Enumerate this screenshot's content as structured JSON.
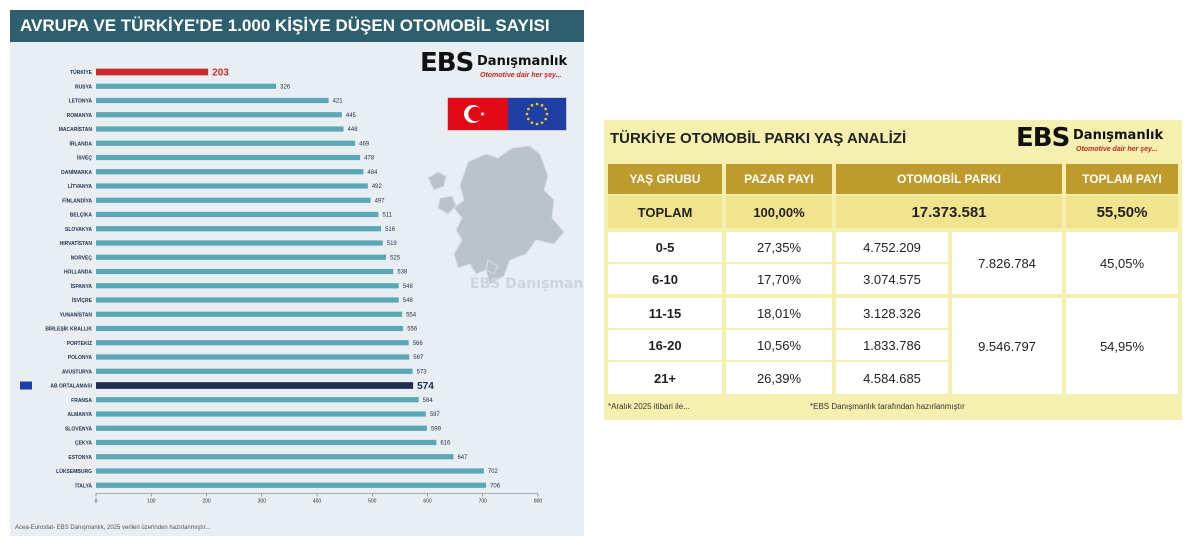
{
  "left": {
    "title": "AVRUPA VE TÜRKİYE'DE 1.000 KİŞİYE DÜŞEN OTOMOBİL SAYISI",
    "logo": {
      "brand": "EBS",
      "name": "Danışmanlık",
      "tagline": "Otomotive dair her şey..."
    },
    "watermark": "EBS Danışmanlık",
    "source": "Acea-Eurostat- EBS Danışmanlık, 2025 verileri üzerinden hazırlanmıştır..."
  },
  "right": {
    "title": "TÜRKİYE OTOMOBİL PARKI YAŞ ANALİZİ",
    "logo": {
      "brand": "EBS",
      "name": "Danışmanlık",
      "tagline": "Otomotive dair her şey..."
    },
    "headers": [
      "YAŞ GRUBU",
      "PAZAR PAYI",
      "OTOMOBİL PARKI",
      "TOPLAM PAYI"
    ],
    "total": {
      "group": "TOPLAM",
      "share": "100,00%",
      "park": "17.373.581",
      "total_share": "55,50%"
    },
    "rows": [
      {
        "group": "0-5",
        "share": "27,35%",
        "park": "4.752.209"
      },
      {
        "group": "6-10",
        "share": "17,70%",
        "park": "3.074.575"
      },
      {
        "group": "11-15",
        "share": "18,01%",
        "park": "3.128.326"
      },
      {
        "group": "16-20",
        "share": "10,56%",
        "park": "1.833.786"
      },
      {
        "group": "21+",
        "share": "26,39%",
        "park": "4.584.685"
      }
    ],
    "groups": [
      {
        "subtotal": "7.826.784",
        "total_share": "45,05%"
      },
      {
        "subtotal": "9.546.797",
        "total_share": "54,95%"
      }
    ],
    "note_left": "*Aralık 2025 itibari ile...",
    "note_right": "*EBS Danışmanlık tarafından hazırlanmıştır"
  },
  "colors": {
    "bar": "#5aa7b6",
    "turkey": "#cc2b2b",
    "eu_avg": "#1e2f4f",
    "header": "#bf9a2c",
    "title_bg": "#2e5f6e"
  },
  "chart_data": {
    "type": "bar",
    "orientation": "horizontal",
    "title": "AVRUPA VE TÜRKİYE'DE 1.000 KİŞİYE DÜŞEN OTOMOBİL SAYISI",
    "categories": [
      "TÜRKİYE",
      "RUSYA",
      "LETONYA",
      "ROMANYA",
      "MACARİSTAN",
      "İRLANDA",
      "İSVEÇ",
      "DANİMARKA",
      "LİTVANYA",
      "FİNLANDİYA",
      "BELÇİKA",
      "SLOVAKYA",
      "HIRVATİSTAN",
      "NORVEÇ",
      "HOLLANDA",
      "İSPANYA",
      "İSVİÇRE",
      "YUNANİSTAN",
      "BİRLEŞİK KRALLIK",
      "PORTEKİZ",
      "POLONYA",
      "AVUSTURYA",
      "AB ORTALAMASI",
      "FRANSA",
      "ALMANYA",
      "SLOVENYA",
      "ÇEKYA",
      "ESTONYA",
      "LÜKSEMBURG",
      "İTALYA"
    ],
    "values": [
      203,
      326,
      421,
      445,
      448,
      469,
      478,
      484,
      492,
      497,
      511,
      516,
      519,
      525,
      538,
      548,
      548,
      554,
      556,
      566,
      567,
      573,
      574,
      584,
      597,
      599,
      616,
      647,
      702,
      706
    ],
    "highlight": {
      "TÜRKİYE": "turkey",
      "AB ORTALAMASI": "eu_avg"
    },
    "xlim": [
      0,
      800
    ],
    "xticks": [
      0,
      100,
      200,
      300,
      400,
      500,
      600,
      700,
      800
    ],
    "grid": false,
    "legend": "none"
  }
}
